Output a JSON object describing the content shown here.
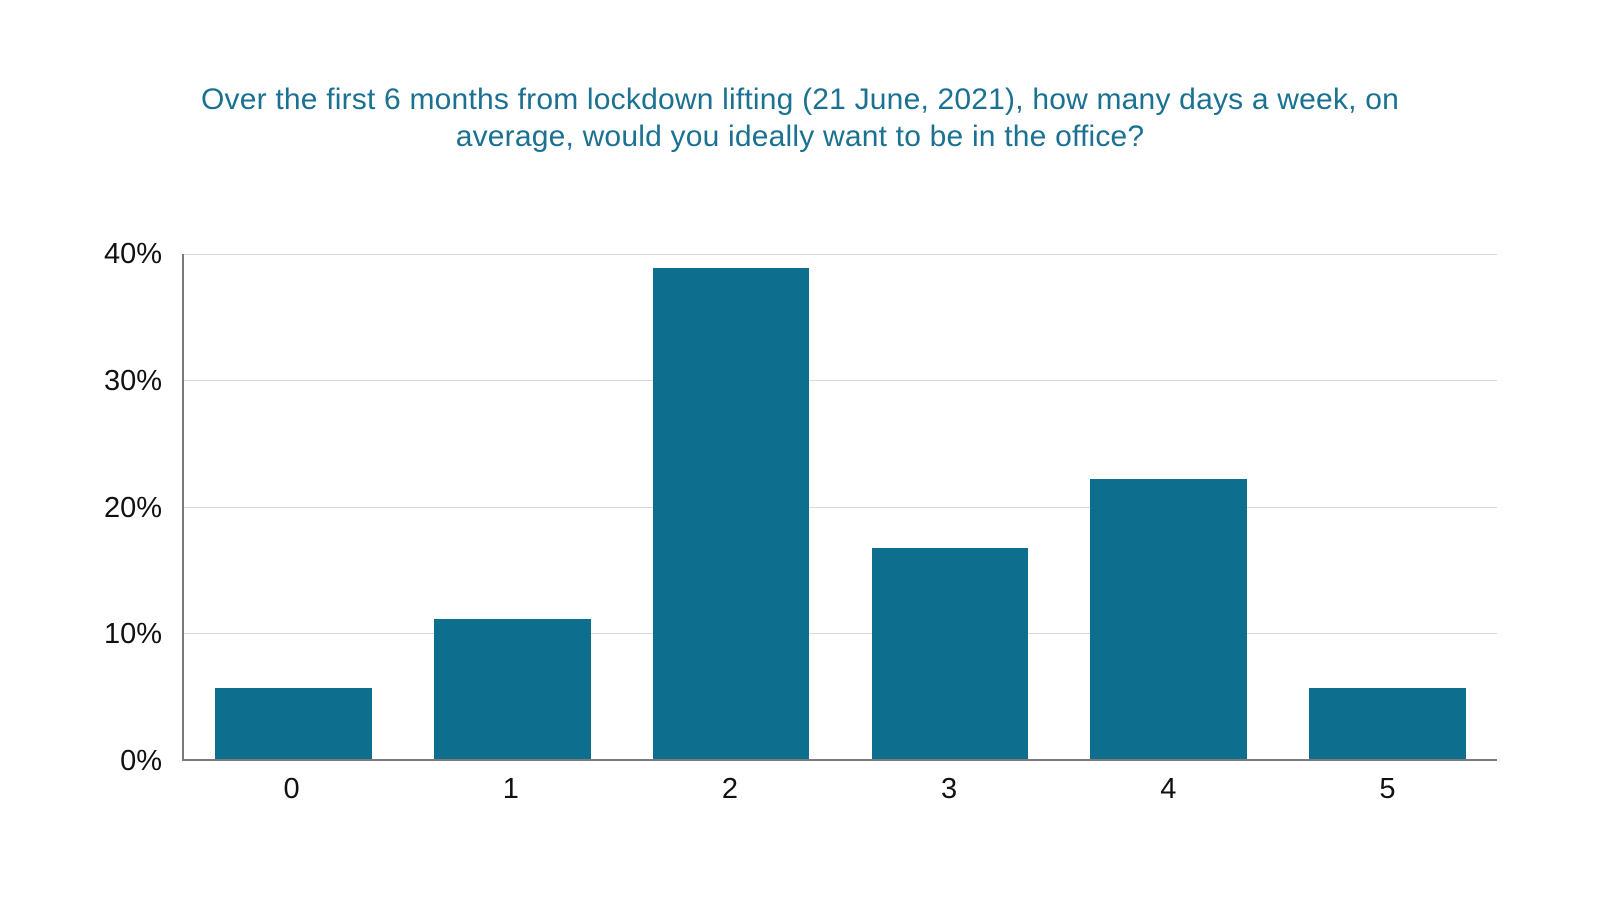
{
  "page": {
    "background": "#ffffff"
  },
  "title": {
    "text": "Over the first 6 months from lockdown lifting (21 June, 2021), how many days a week, on average, would you ideally want to be in the office?",
    "lines": [
      "Over the first 6 months from lockdown lifting (21 June, 2021), how many days a week, on",
      "average, would you ideally want to be in the office?"
    ],
    "color": "#1a7191"
  },
  "chart_data": {
    "type": "bar",
    "title": "Over the first 6 months from lockdown lifting (21 June, 2021), how many days a week, on average, would you ideally want to be in the office?",
    "categories": [
      "0",
      "1",
      "2",
      "3",
      "4",
      "5"
    ],
    "values": [
      5.6,
      11.1,
      38.9,
      16.7,
      22.2,
      5.6
    ],
    "xlabel": "",
    "ylabel": "",
    "ylim": [
      0,
      40
    ],
    "y_ticks": [
      {
        "label": "0%",
        "value": 0
      },
      {
        "label": "10%",
        "value": 10
      },
      {
        "label": "20%",
        "value": 20
      },
      {
        "label": "30%",
        "value": 30
      },
      {
        "label": "40%",
        "value": 40
      }
    ],
    "grid": true,
    "legend": false,
    "bar_color": "#0d6e8d",
    "grid_color": "#d8d8d8",
    "axis_color": "#7b7b7b",
    "tick_label_color": "#111111"
  }
}
